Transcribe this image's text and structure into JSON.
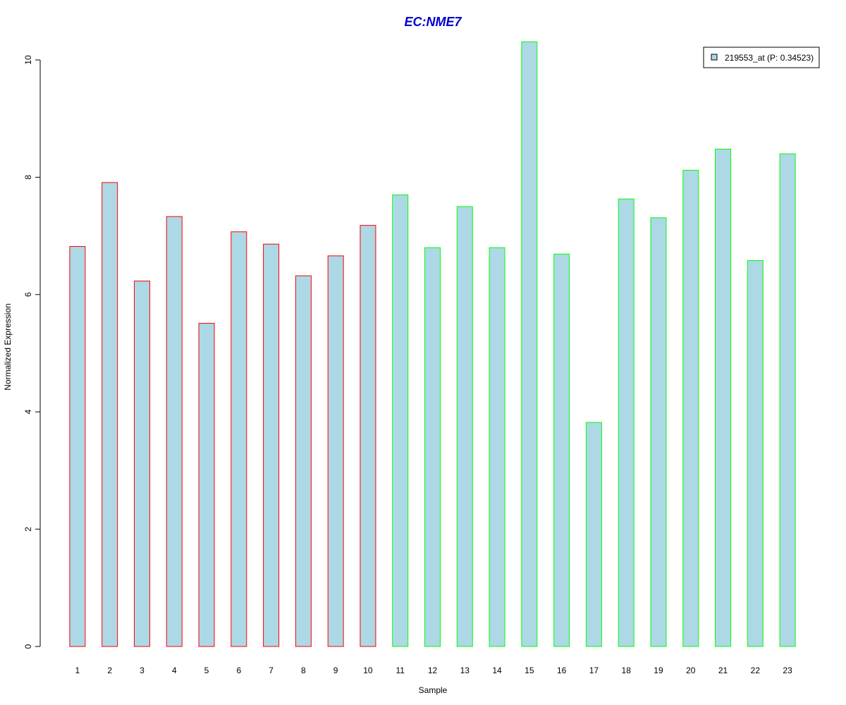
{
  "chart_data": {
    "type": "bar",
    "title": "EC:NME7",
    "xlabel": "Sample",
    "ylabel": "Normalized Expression",
    "ylim": [
      0,
      10
    ],
    "yticks": [
      "0",
      "2",
      "4",
      "6",
      "8",
      "10"
    ],
    "categories": [
      "1",
      "2",
      "3",
      "4",
      "5",
      "6",
      "7",
      "8",
      "9",
      "10",
      "11",
      "12",
      "13",
      "14",
      "15",
      "16",
      "17",
      "18",
      "19",
      "20",
      "21",
      "22",
      "23"
    ],
    "series": [
      {
        "name": "219553_at (P: 0.34523)",
        "values": [
          6.82,
          7.91,
          6.23,
          7.33,
          5.51,
          7.07,
          6.86,
          6.32,
          6.66,
          7.18,
          7.7,
          6.8,
          7.5,
          6.8,
          10.31,
          6.69,
          3.82,
          7.63,
          7.31,
          8.12,
          8.48,
          6.58,
          8.4
        ]
      }
    ],
    "group_a_count": 10,
    "legend_position": "top-right",
    "grid": false,
    "colors": {
      "bar_fill": "#add8e6",
      "group_a_border": "#ff0000",
      "group_b_border": "#00ff00",
      "title": "#0000cc",
      "axis": "#000000"
    }
  }
}
